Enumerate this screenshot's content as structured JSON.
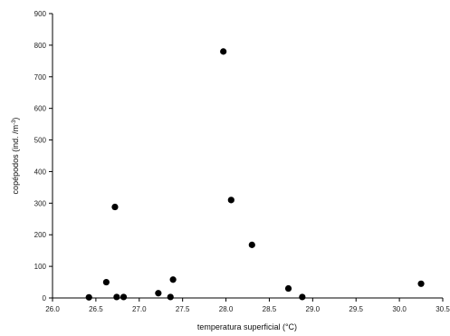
{
  "chart_data": {
    "type": "scatter",
    "xlabel": "temperatura superficial (°C)",
    "ylabel_main": "copépodos (ind. /m",
    "ylabel_sup": "-3",
    "ylabel_end": ")",
    "xlim": [
      26.0,
      30.5
    ],
    "ylim": [
      0,
      900
    ],
    "xticks": [
      "26.0",
      "26.5",
      "27.0",
      "27.5",
      "28.0",
      "28.5",
      "29.0",
      "29.5",
      "30.0",
      "30.5"
    ],
    "xtick_values": [
      26.0,
      26.5,
      27.0,
      27.5,
      28.0,
      28.5,
      29.0,
      29.5,
      30.0,
      30.5
    ],
    "yticks": [
      "0",
      "100",
      "200",
      "300",
      "400",
      "500",
      "600",
      "700",
      "800",
      "900"
    ],
    "ytick_values": [
      0,
      100,
      200,
      300,
      400,
      500,
      600,
      700,
      800,
      900
    ],
    "grid": false,
    "marker_color": "#000000",
    "points": [
      {
        "x": 26.42,
        "y": 2
      },
      {
        "x": 26.62,
        "y": 50
      },
      {
        "x": 26.72,
        "y": 288
      },
      {
        "x": 26.74,
        "y": 3
      },
      {
        "x": 26.82,
        "y": 3
      },
      {
        "x": 27.22,
        "y": 15
      },
      {
        "x": 27.36,
        "y": 3
      },
      {
        "x": 27.39,
        "y": 58
      },
      {
        "x": 27.97,
        "y": 780
      },
      {
        "x": 28.06,
        "y": 310
      },
      {
        "x": 28.3,
        "y": 168
      },
      {
        "x": 28.72,
        "y": 30
      },
      {
        "x": 28.88,
        "y": 3
      },
      {
        "x": 30.25,
        "y": 45
      }
    ]
  }
}
